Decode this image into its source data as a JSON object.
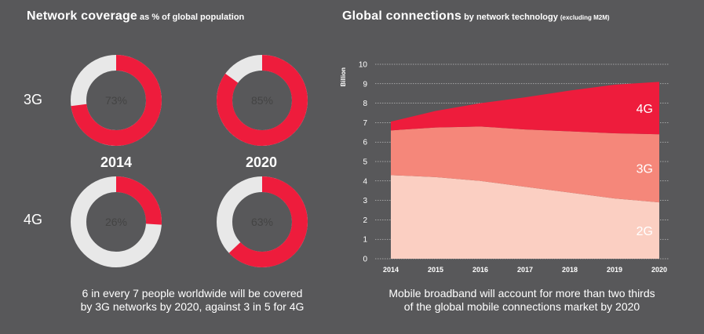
{
  "left_panel": {
    "title": "Network coverage",
    "subtitle": "as % of global population",
    "row_labels": [
      "3G",
      "4G"
    ],
    "year_labels": [
      "2014",
      "2020"
    ],
    "caption_line1": "6 in every 7 people worldwide will be covered",
    "caption_line2": "by 3G networks by 2020, against 3 in 5 for 4G"
  },
  "right_panel": {
    "title": "Global connections",
    "subtitle": "by network technology",
    "subtitle_note": "(excluding M2M)",
    "caption_line1": "Mobile broadband will account for more than two thirds",
    "caption_line2": "of the global mobile connections market by 2020"
  },
  "colors": {
    "background": "#58585a",
    "accent_red": "#ee1c3c",
    "ring_gray": "#e8e8e8",
    "area_4g": "#ee1c3c",
    "area_3g": "#f5877a",
    "area_2g": "#fbcfc2"
  },
  "chart_data": [
    {
      "type": "pie",
      "variant": "donut-grid",
      "rows": [
        "3G",
        "4G"
      ],
      "columns": [
        "2014",
        "2020"
      ],
      "values": [
        {
          "row": "3G",
          "year": "2014",
          "value": 73,
          "label": "73%"
        },
        {
          "row": "3G",
          "year": "2020",
          "value": 85,
          "label": "85%"
        },
        {
          "row": "4G",
          "year": "2014",
          "value": 26,
          "label": "26%"
        },
        {
          "row": "4G",
          "year": "2020",
          "value": 63,
          "label": "63%"
        }
      ]
    },
    {
      "type": "area",
      "stacked": true,
      "ylabel": "Billion",
      "xlabel": "",
      "ylim": [
        0,
        10
      ],
      "yticks": [
        0,
        1,
        2,
        3,
        4,
        5,
        6,
        7,
        8,
        9,
        10
      ],
      "x": [
        2014,
        2015,
        2016,
        2017,
        2018,
        2019,
        2020
      ],
      "xtick_labels": [
        "2014",
        "2015",
        "2016",
        "2017",
        "2018",
        "2019",
        "2020"
      ],
      "series": [
        {
          "name": "2G",
          "values": [
            4.3,
            4.2,
            4.0,
            3.7,
            3.4,
            3.1,
            2.9
          ]
        },
        {
          "name": "3G",
          "values": [
            2.3,
            2.55,
            2.8,
            2.95,
            3.15,
            3.35,
            3.5
          ]
        },
        {
          "name": "4G",
          "values": [
            0.45,
            0.85,
            1.2,
            1.65,
            2.1,
            2.5,
            2.7
          ]
        }
      ],
      "grid": "horizontal"
    }
  ]
}
